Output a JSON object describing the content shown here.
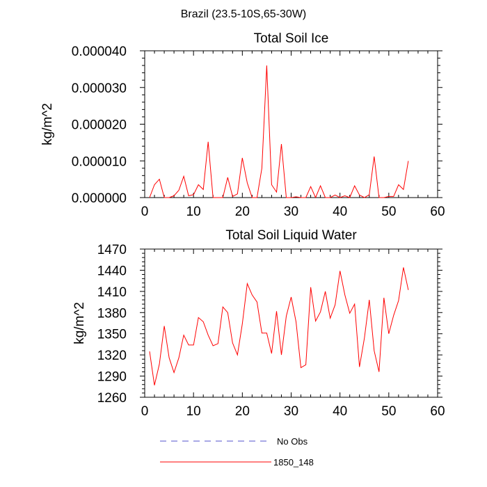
{
  "figure": {
    "title": "Brazil (23.5-10S,65-30W)"
  },
  "chart_data": [
    {
      "type": "line",
      "title": "Total Soil Ice",
      "xlabel": "",
      "ylabel": "kg/m^2",
      "xlim": [
        0,
        60
      ],
      "ylim": [
        0,
        4e-05
      ],
      "xticks": [
        "0",
        "10",
        "20",
        "30",
        "40",
        "50",
        "60"
      ],
      "yticks": [
        "0.000000",
        "0.000010",
        "0.000020",
        "0.000030",
        "0.000040"
      ],
      "series": [
        {
          "name": "1850_148",
          "color": "#ff0000",
          "x": [
            1,
            2,
            3,
            4,
            5,
            6,
            7,
            8,
            9,
            10,
            11,
            12,
            13,
            14,
            15,
            16,
            17,
            18,
            19,
            20,
            21,
            22,
            23,
            24,
            25,
            26,
            27,
            28,
            29,
            30,
            31,
            32,
            33,
            34,
            35,
            36,
            37,
            38,
            39,
            40,
            41,
            42,
            43,
            44,
            45,
            46,
            47,
            48,
            49,
            50,
            51,
            52,
            53,
            54
          ],
          "values": [
            0.0,
            3.5e-06,
            5e-06,
            0.0,
            0.0,
            5e-07,
            2e-06,
            5.8e-06,
            5e-07,
            8e-07,
            3.5e-06,
            2.2e-06,
            1.52e-05,
            0.0,
            0.0,
            0.0,
            5.5e-06,
            3e-07,
            1e-06,
            1.08e-05,
            4e-06,
            0.0,
            0.0,
            8e-06,
            3.6e-05,
            3.5e-06,
            1.5e-06,
            1.46e-05,
            0.0,
            0.0,
            2e-07,
            0.0,
            0.0,
            3e-06,
            0.0,
            3.2e-06,
            0.0,
            0.0,
            7e-07,
            0.0,
            5e-07,
            0.0,
            3.2e-06,
            7e-07,
            0.0,
            8e-07,
            1.12e-05,
            0.0,
            0.0,
            3e-07,
            3e-07,
            3.5e-06,
            2.2e-06,
            1e-05
          ]
        }
      ]
    },
    {
      "type": "line",
      "title": "Total Soil Liquid Water",
      "xlabel": "",
      "ylabel": "kg/m^2",
      "xlim": [
        0,
        60
      ],
      "ylim": [
        1260,
        1470
      ],
      "xticks": [
        "0",
        "10",
        "20",
        "30",
        "40",
        "50",
        "60"
      ],
      "yticks": [
        "1260",
        "1290",
        "1320",
        "1350",
        "1380",
        "1410",
        "1440",
        "1470"
      ],
      "series": [
        {
          "name": "1850_148",
          "color": "#ff0000",
          "x": [
            1,
            2,
            3,
            4,
            5,
            6,
            7,
            8,
            9,
            10,
            11,
            12,
            13,
            14,
            15,
            16,
            17,
            18,
            19,
            20,
            21,
            22,
            23,
            24,
            25,
            26,
            27,
            28,
            29,
            30,
            31,
            32,
            33,
            34,
            35,
            36,
            37,
            38,
            39,
            40,
            41,
            42,
            43,
            44,
            45,
            46,
            47,
            48,
            49,
            50,
            51,
            52,
            53,
            54
          ],
          "values": [
            1325,
            1277,
            1307,
            1361,
            1316,
            1295,
            1316,
            1348,
            1334,
            1334,
            1373,
            1367,
            1348,
            1333,
            1336,
            1388,
            1380,
            1337,
            1320,
            1364,
            1421,
            1405,
            1395,
            1351,
            1351,
            1322,
            1382,
            1320,
            1375,
            1402,
            1367,
            1302,
            1306,
            1416,
            1368,
            1381,
            1410,
            1372,
            1391,
            1439,
            1405,
            1379,
            1392,
            1303,
            1344,
            1398,
            1326,
            1296,
            1401,
            1350,
            1376,
            1397,
            1444,
            1412
          ]
        }
      ]
    }
  ],
  "legend": {
    "entries": [
      {
        "label": "No Obs",
        "color": "#5050cc",
        "style": "dashed"
      },
      {
        "label": "1850_148",
        "color": "#ff0000",
        "style": "solid"
      }
    ]
  }
}
